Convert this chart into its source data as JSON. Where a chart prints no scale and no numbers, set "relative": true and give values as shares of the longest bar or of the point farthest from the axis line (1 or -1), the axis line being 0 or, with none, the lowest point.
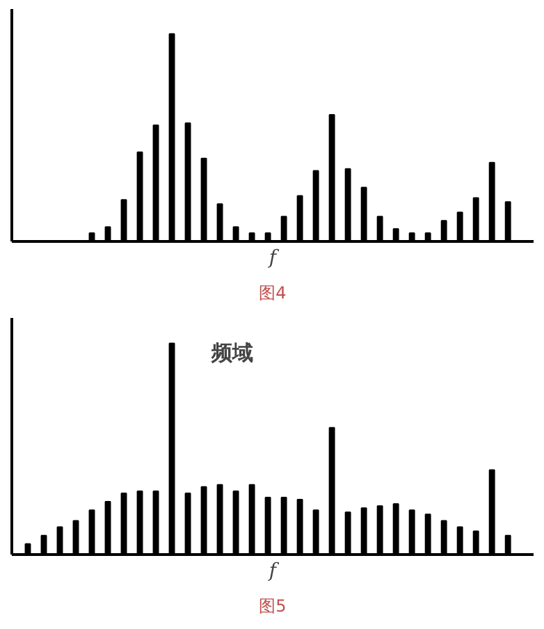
{
  "chart_data": [
    {
      "type": "bar",
      "relative": true,
      "xlabel": "f",
      "annotations": [
        "图4"
      ],
      "color": "#000000",
      "categories": [
        null,
        null,
        null,
        null,
        null,
        null,
        null,
        null,
        null,
        null,
        null,
        null,
        null,
        null,
        null,
        null,
        null,
        null,
        null,
        null,
        null,
        null,
        null,
        null,
        null,
        null,
        null
      ],
      "values": [
        0.04,
        0.07,
        0.2,
        0.43,
        0.56,
        1,
        0.57,
        0.4,
        0.18,
        0.07,
        0.04,
        0.04,
        0.12,
        0.22,
        0.34,
        0.61,
        0.35,
        0.26,
        0.12,
        0.06,
        0.04,
        0.04,
        0.1,
        0.14,
        0.21,
        0.38,
        0.19
      ]
    },
    {
      "type": "bar",
      "relative": true,
      "xlabel": "f",
      "annotations": [
        "频域",
        "图5"
      ],
      "color": "#000000",
      "categories": [
        null,
        null,
        null,
        null,
        null,
        null,
        null,
        null,
        null,
        null,
        null,
        null,
        null,
        null,
        null,
        null,
        null,
        null,
        null,
        null,
        null,
        null,
        null,
        null,
        null,
        null,
        null,
        null,
        null,
        null,
        null
      ],
      "values": [
        0.05,
        0.09,
        0.13,
        0.16,
        0.21,
        0.25,
        0.29,
        0.3,
        0.3,
        1,
        0.29,
        0.32,
        0.33,
        0.3,
        0.33,
        0.27,
        0.27,
        0.26,
        0.21,
        0.6,
        0.2,
        0.22,
        0.23,
        0.24,
        0.21,
        0.19,
        0.16,
        0.13,
        0.11,
        0.4,
        0.09
      ]
    }
  ]
}
